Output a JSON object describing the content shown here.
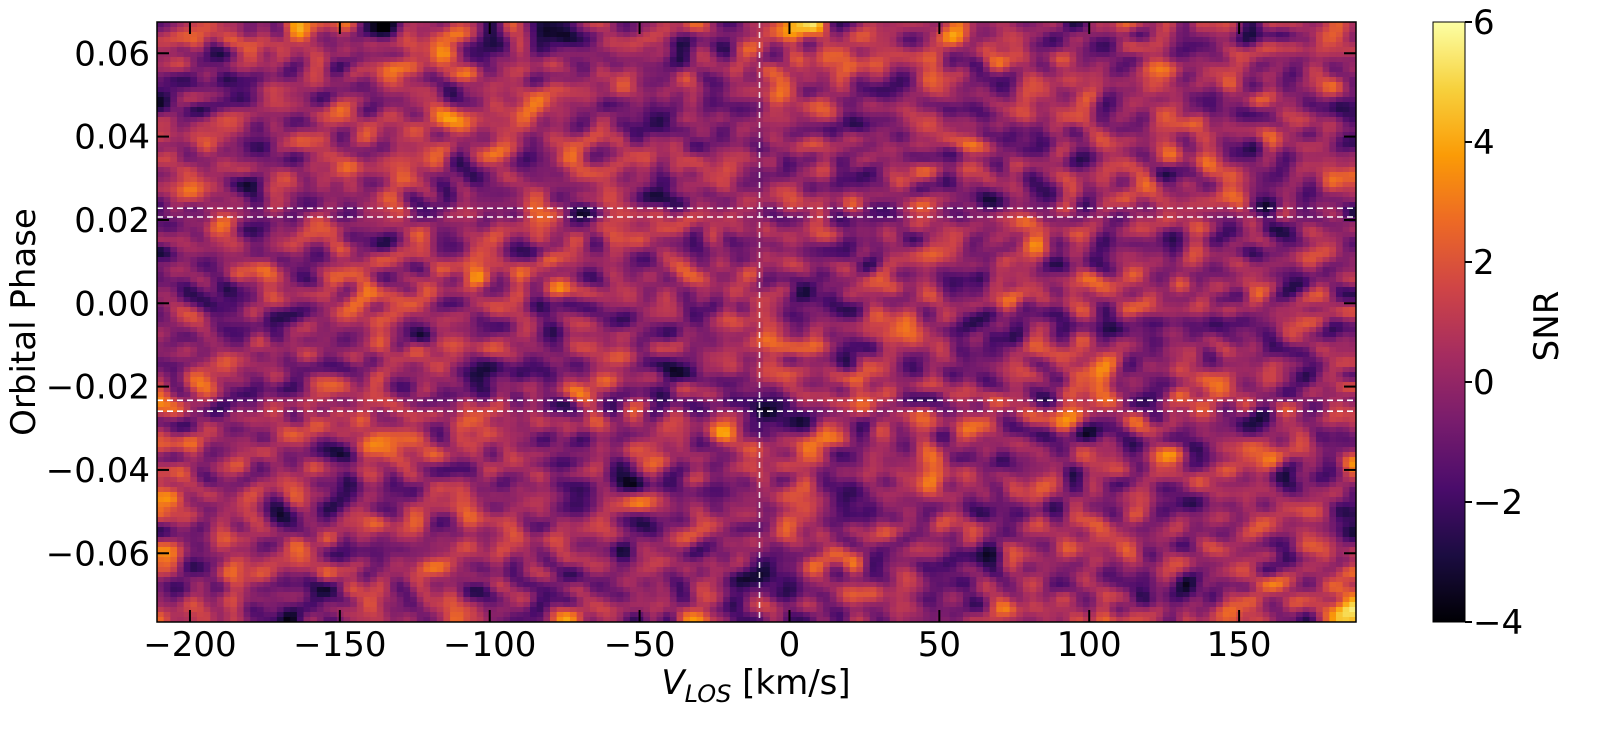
{
  "chart_data": {
    "type": "heatmap",
    "title": "",
    "xlabel": {
      "main": "V",
      "sub": "LOS",
      "rest": " [km/s]"
    },
    "ylabel": "Orbital Phase",
    "xlim": [
      -211,
      189
    ],
    "ylim": [
      -0.0765,
      0.0675
    ],
    "x_ticks": [
      -200,
      -150,
      -100,
      -50,
      0,
      50,
      100,
      150
    ],
    "x_tick_labels": [
      "−200",
      "−150",
      "−100",
      "−50",
      "0",
      "50",
      "100",
      "150"
    ],
    "y_ticks": [
      0.06,
      0.04,
      0.02,
      0.0,
      -0.02,
      -0.04,
      -0.06
    ],
    "y_tick_labels": [
      "0.06",
      "0.04",
      "0.02",
      "0.00",
      "−0.02",
      "−0.04",
      "−0.06"
    ],
    "colorbar": {
      "label": "SNR",
      "range": [
        -4,
        6
      ],
      "ticks": [
        6,
        4,
        2,
        0,
        -2,
        -4
      ],
      "tick_labels": [
        "6",
        "4",
        "2",
        "0",
        "−2",
        "−4"
      ],
      "colormap": "inferno",
      "colormap_stops": [
        "#000004",
        "#1b0c41",
        "#4a0c6b",
        "#781c6d",
        "#a52c60",
        "#cf4446",
        "#ed6925",
        "#fb9b06",
        "#f7d13d",
        "#fcffa4"
      ]
    },
    "reference_lines": {
      "vertical_x": [
        -10
      ],
      "horizontal_y": [
        0.0228,
        0.0207,
        -0.0233,
        -0.0259
      ],
      "style": "dashed",
      "color": "#ffffff"
    },
    "field": {
      "grid": [
        120,
        180
      ],
      "typical_snr": [
        -2,
        2
      ],
      "seed": 7
    }
  }
}
